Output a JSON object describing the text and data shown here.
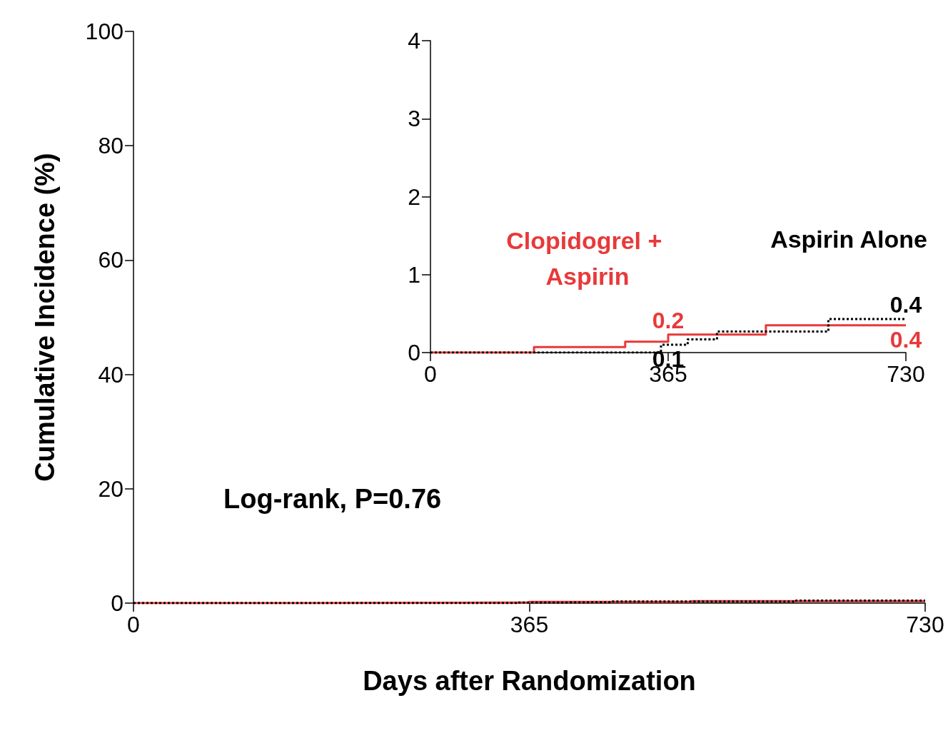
{
  "chart_data": [
    {
      "type": "step",
      "xlabel": "Days after Randomization",
      "ylabel": "Cumulative Incidence (%)",
      "annotations": [
        "Log-rank, P=0.76"
      ],
      "xlim": [
        0,
        730
      ],
      "xticks": [
        0,
        365,
        730
      ],
      "ylim": [
        0,
        100
      ],
      "yticks": [
        0,
        20,
        40,
        60,
        80,
        100
      ],
      "grid": false,
      "legend": false,
      "marker": "none",
      "series": [
        {
          "color": "#e8393a",
          "line_style": "solid",
          "x": [
            0,
            159,
            299,
            365,
            515,
            730
          ],
          "values": [
            0,
            0.07,
            0.14,
            0.23,
            0.35,
            0.35
          ]
        },
        {
          "color": "#000000",
          "line_style": "dotted",
          "x": [
            0,
            354,
            365,
            395,
            440,
            611,
            730
          ],
          "values": [
            0,
            0.1,
            0.1,
            0.17,
            0.27,
            0.43,
            0.43
          ]
        }
      ]
    },
    {
      "type": "step",
      "xlim": [
        0,
        730
      ],
      "xticks": [
        0,
        365,
        730
      ],
      "ylim": [
        0,
        4
      ],
      "yticks": [
        0,
        1,
        2,
        3,
        4
      ],
      "grid": false,
      "legend": false,
      "marker": "none",
      "series": [
        {
          "name": "Clopidogrel + Aspirin",
          "color": "#e8393a",
          "line_style": "solid",
          "x": [
            0,
            159,
            299,
            365,
            515,
            730
          ],
          "values": [
            0,
            0.07,
            0.14,
            0.23,
            0.35,
            0.35
          ],
          "value_labels": [
            null,
            null,
            null,
            "0.2",
            null,
            "0.4"
          ]
        },
        {
          "name": "Aspirin Alone",
          "color": "#000000",
          "line_style": "dotted",
          "x": [
            0,
            354,
            365,
            395,
            440,
            611,
            730
          ],
          "values": [
            0,
            0.1,
            0.1,
            0.17,
            0.27,
            0.43,
            0.43
          ],
          "value_labels": [
            null,
            null,
            "0.1",
            null,
            null,
            null,
            "0.4"
          ]
        }
      ]
    }
  ]
}
